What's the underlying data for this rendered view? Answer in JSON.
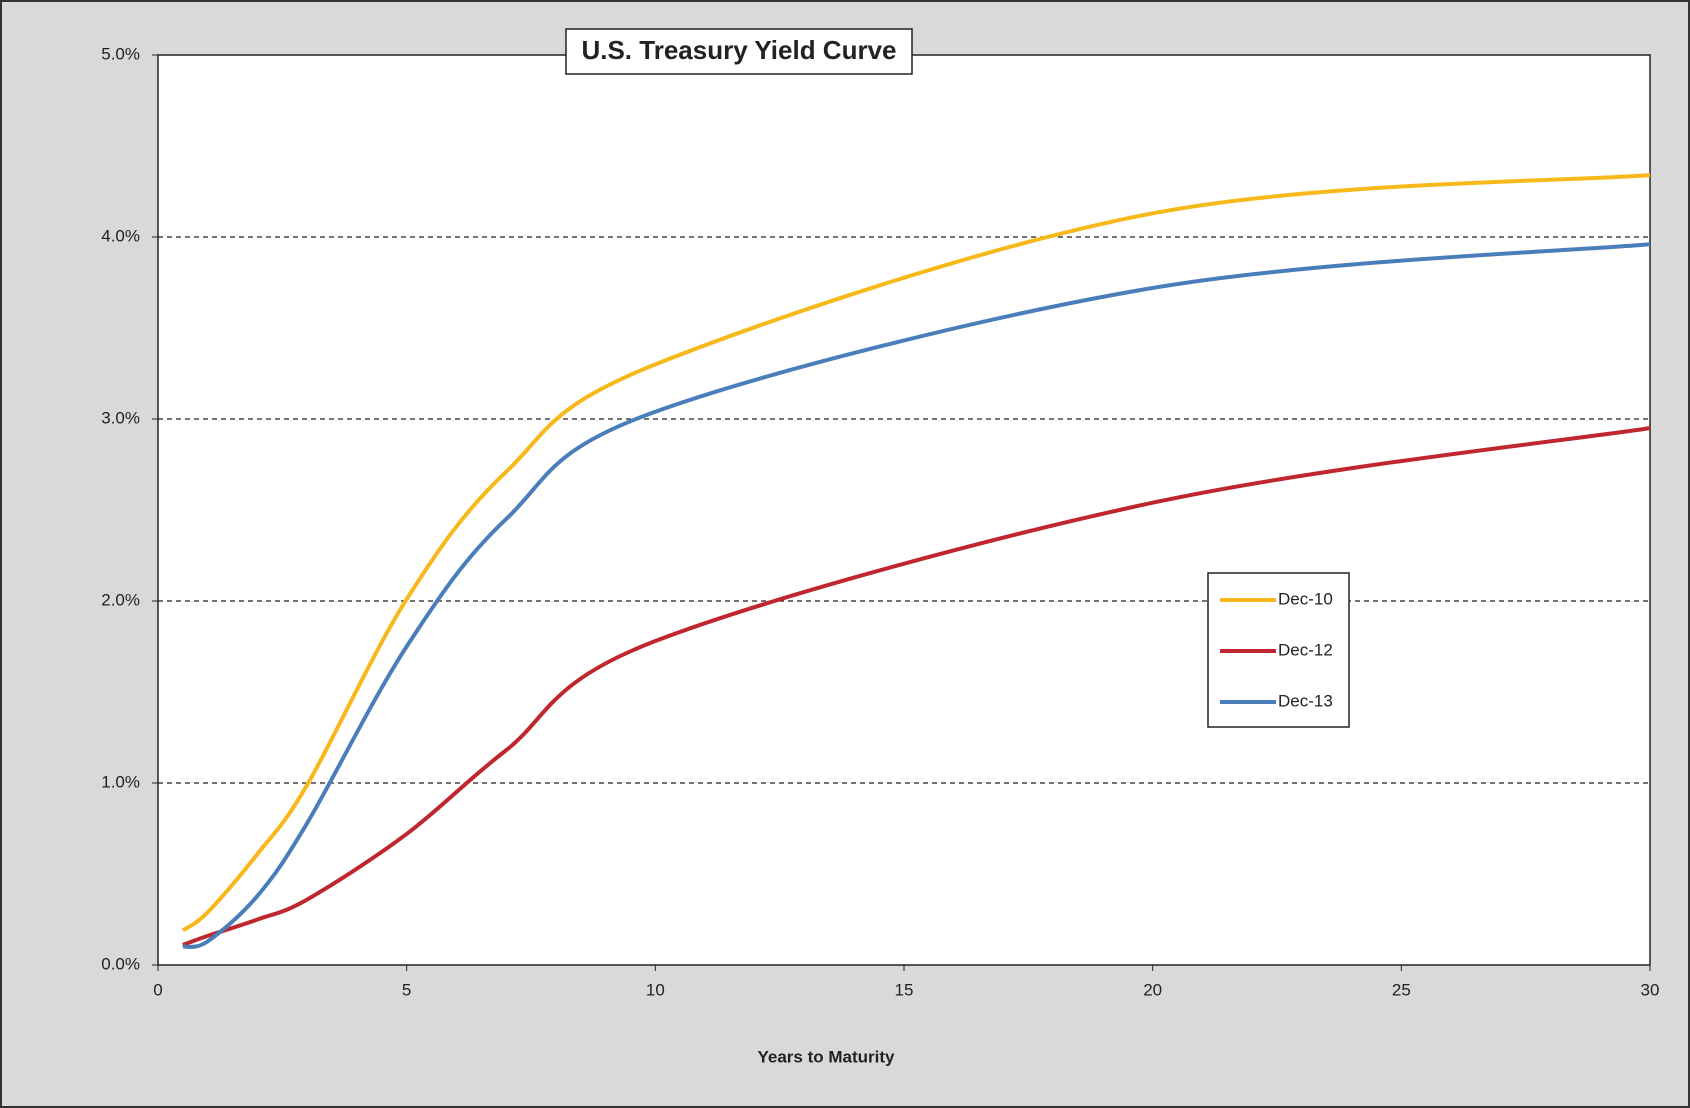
{
  "chart_data": {
    "type": "line",
    "title": "U.S. Treasury Yield Curve",
    "x_label": "Years to Maturity",
    "x": [
      0.5,
      1,
      2,
      3,
      5,
      7,
      10,
      20,
      30
    ],
    "series": [
      {
        "name": "Dec-10",
        "color": "#f7b81a",
        "values": [
          0.19,
          0.29,
          0.61,
          0.99,
          2.01,
          2.71,
          3.3,
          4.13,
          4.34
        ]
      },
      {
        "name": "Dec-12",
        "color": "#c0262d",
        "values": [
          0.11,
          0.16,
          0.25,
          0.36,
          0.72,
          1.18,
          1.78,
          2.54,
          2.95
        ]
      },
      {
        "name": "Dec-13",
        "color": "#4a7ebb",
        "values": [
          0.1,
          0.13,
          0.38,
          0.78,
          1.75,
          2.45,
          3.04,
          3.72,
          3.96
        ]
      }
    ],
    "xlim": [
      0,
      30
    ],
    "xticks": [
      0,
      5,
      10,
      15,
      20,
      25,
      30
    ],
    "ylim": [
      0,
      5
    ],
    "yticks": [
      {
        "value": 0,
        "label": "0.0%"
      },
      {
        "value": 1,
        "label": "1.0%"
      },
      {
        "value": 2,
        "label": "2.0%"
      },
      {
        "value": 3,
        "label": "3.0%"
      },
      {
        "value": 4,
        "label": "4.0%"
      },
      {
        "value": 5,
        "label": "5.0%"
      }
    ],
    "grid": true
  }
}
